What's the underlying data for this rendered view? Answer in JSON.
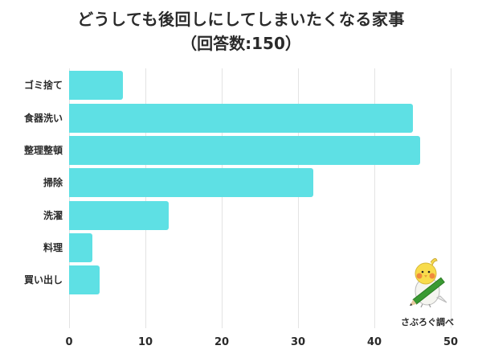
{
  "header": {
    "title": "どうしても後回しにしてしまいたくなる家事",
    "subtitle": "（回答数:150）"
  },
  "branding": {
    "label": "さぶろぐ調べ",
    "mascot": "cockatiel-with-pencil-icon"
  },
  "colors": {
    "bar": "#5ee0e4",
    "grid": "#e3e3e3",
    "text": "#2a2a2a"
  },
  "axis": {
    "ticks": [
      "0",
      "10",
      "20",
      "30",
      "40",
      "50"
    ]
  },
  "chart_data": {
    "type": "bar",
    "orientation": "horizontal",
    "title": "どうしても後回しにしてしまいたくなる家事",
    "subtitle": "（回答数:150）",
    "categories": [
      "ゴミ捨て",
      "食器洗い",
      "整理整頓",
      "掃除",
      "洗濯",
      "料理",
      "買い出し"
    ],
    "values": [
      7,
      45,
      46,
      32,
      13,
      3,
      4
    ],
    "xlabel": "",
    "ylabel": "",
    "xlim": [
      0,
      50
    ],
    "xticks": [
      0,
      10,
      20,
      30,
      40,
      50
    ],
    "grid": true,
    "legend": null,
    "annotations": [
      "さぶろぐ調べ"
    ]
  }
}
